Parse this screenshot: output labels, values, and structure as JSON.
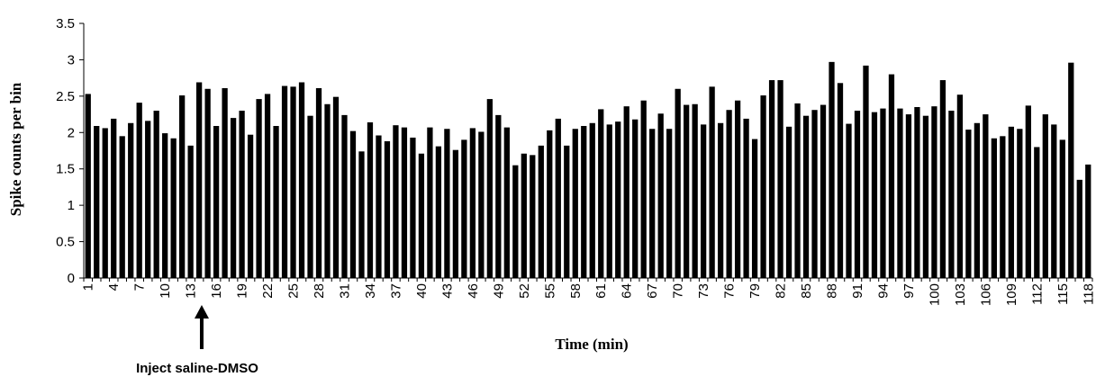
{
  "chart_data": {
    "type": "bar",
    "xlabel": "Time (min)",
    "ylabel": "Spike counts per bin",
    "ylim": [
      0,
      3.5
    ],
    "yticks": [
      "0",
      "0.5",
      "1",
      "1.5",
      "2",
      "2.5",
      "3",
      "3.5"
    ],
    "grid": false,
    "legend": "none",
    "bar_color": "#000000",
    "x": [
      1,
      2,
      3,
      4,
      5,
      6,
      7,
      8,
      9,
      10,
      11,
      12,
      13,
      14,
      15,
      16,
      17,
      18,
      19,
      20,
      21,
      22,
      23,
      24,
      25,
      26,
      27,
      28,
      29,
      30,
      31,
      32,
      33,
      34,
      35,
      36,
      37,
      38,
      39,
      40,
      41,
      42,
      43,
      44,
      45,
      46,
      47,
      48,
      49,
      50,
      51,
      52,
      53,
      54,
      55,
      56,
      57,
      58,
      59,
      60,
      61,
      62,
      63,
      64,
      65,
      66,
      67,
      68,
      69,
      70,
      71,
      72,
      73,
      74,
      75,
      76,
      77,
      78,
      79,
      80,
      81,
      82,
      83,
      84,
      85,
      86,
      87,
      88,
      89,
      90,
      91,
      92,
      93,
      94,
      95,
      96,
      97,
      98,
      99,
      100,
      101,
      102,
      103,
      104,
      105,
      106,
      107,
      108,
      109,
      110,
      111,
      112,
      113,
      114,
      115,
      116,
      117,
      118
    ],
    "xtick_labels": [
      "1",
      "4",
      "7",
      "10",
      "13",
      "16",
      "19",
      "22",
      "25",
      "28",
      "31",
      "34",
      "37",
      "40",
      "43",
      "46",
      "49",
      "52",
      "55",
      "58",
      "61",
      "64",
      "67",
      "70",
      "73",
      "76",
      "79",
      "82",
      "85",
      "88",
      "91",
      "94",
      "97",
      "100",
      "103",
      "106",
      "109",
      "112",
      "115",
      "118"
    ],
    "values": [
      2.53,
      2.09,
      2.06,
      2.19,
      1.95,
      2.13,
      2.41,
      2.16,
      2.3,
      1.99,
      1.92,
      2.51,
      1.82,
      2.69,
      2.6,
      2.09,
      2.61,
      2.2,
      2.3,
      1.97,
      2.46,
      2.53,
      2.09,
      2.64,
      2.63,
      2.69,
      2.23,
      2.61,
      2.39,
      2.49,
      2.24,
      2.02,
      1.74,
      2.14,
      1.96,
      1.88,
      2.1,
      2.07,
      1.93,
      1.71,
      2.07,
      1.81,
      2.05,
      1.76,
      1.9,
      2.06,
      2.01,
      2.46,
      2.24,
      2.07,
      1.55,
      1.71,
      1.69,
      1.82,
      2.03,
      2.19,
      1.82,
      2.05,
      2.09,
      2.13,
      2.32,
      2.11,
      2.15,
      2.36,
      2.18,
      2.44,
      2.05,
      2.26,
      2.05,
      2.6,
      2.38,
      2.39,
      2.11,
      2.63,
      2.13,
      2.31,
      2.44,
      2.19,
      1.91,
      2.51,
      2.72,
      2.72,
      2.08,
      2.4,
      2.23,
      2.31,
      2.38,
      2.97,
      2.68,
      2.12,
      2.3,
      2.92,
      2.28,
      2.33,
      2.8,
      2.33,
      2.25,
      2.35,
      2.23,
      2.36,
      2.72,
      2.3,
      2.52,
      2.04,
      2.13,
      2.25,
      1.92,
      1.95,
      2.08,
      2.05,
      2.37,
      1.8,
      2.25,
      2.11,
      1.9,
      2.96,
      1.35,
      1.56
    ]
  },
  "annotation": {
    "label": "Inject saline-DMSO",
    "at_x": 14
  }
}
